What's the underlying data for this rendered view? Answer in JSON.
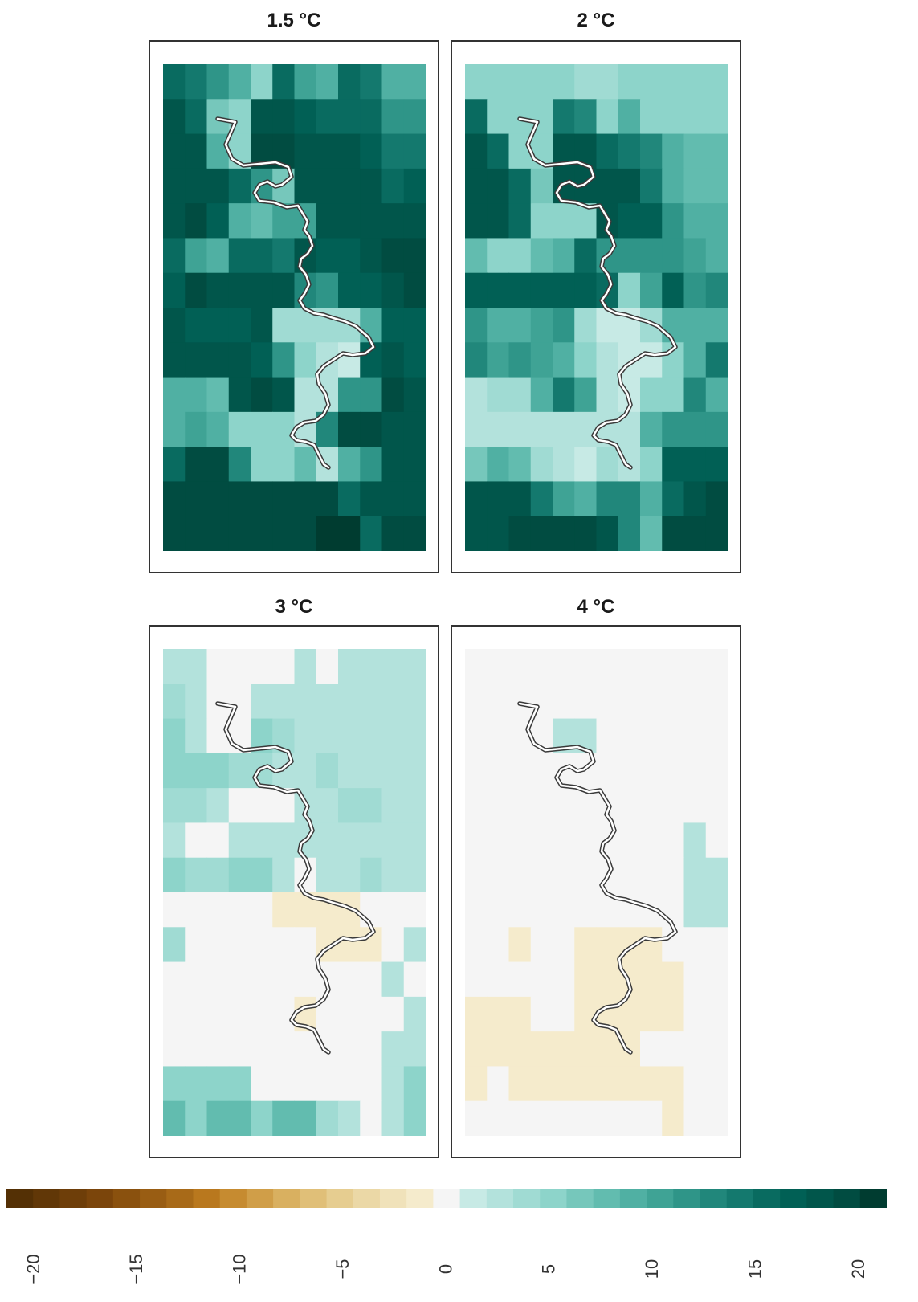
{
  "chart_data": {
    "type": "heatmap",
    "panels": [
      {
        "title": "1.5 °C",
        "rows": [
          [
            16,
            15,
            12,
            10,
            6,
            16,
            11,
            9,
            16,
            15,
            9,
            9
          ],
          [
            19,
            16,
            7,
            5,
            19,
            19,
            18,
            17,
            17,
            17,
            13,
            13
          ],
          [
            19,
            19,
            10,
            6,
            21,
            21,
            19,
            19,
            19,
            18,
            15,
            15
          ],
          [
            19,
            19,
            19,
            17,
            13,
            7,
            19,
            19,
            19,
            19,
            17,
            18
          ],
          [
            19,
            20,
            18,
            10,
            8,
            11,
            11,
            19,
            19,
            19,
            19,
            19
          ],
          [
            17,
            11,
            10,
            17,
            17,
            15,
            19,
            18,
            18,
            19,
            20,
            20
          ],
          [
            18,
            20,
            19,
            19,
            19,
            19,
            14,
            13,
            18,
            18,
            19,
            20
          ],
          [
            19,
            18,
            18,
            18,
            19,
            4,
            4,
            4,
            4,
            10,
            18,
            18
          ],
          [
            19,
            19,
            19,
            19,
            18,
            13,
            6,
            3,
            2,
            18,
            19,
            18
          ],
          [
            9,
            10,
            8,
            19,
            20,
            19,
            3,
            3,
            12,
            12,
            20,
            19
          ],
          [
            9,
            11,
            9,
            6,
            6,
            6,
            3,
            14,
            20,
            20,
            19,
            19
          ],
          [
            16,
            20,
            20,
            14,
            6,
            5,
            8,
            3,
            10,
            12,
            19,
            19
          ],
          [
            21,
            21,
            21,
            21,
            20,
            20,
            20,
            20,
            16,
            19,
            19,
            19
          ],
          [
            21,
            21,
            21,
            21,
            21,
            21,
            21,
            22,
            22,
            17,
            20,
            20
          ]
        ]
      },
      {
        "title": "2 °C",
        "rows": [
          [
            5,
            5,
            5,
            5,
            5,
            4,
            4,
            5,
            5,
            5,
            5,
            5
          ],
          [
            17,
            5,
            5,
            5,
            15,
            14,
            5,
            9,
            6,
            5,
            5,
            5
          ],
          [
            19,
            17,
            5,
            5,
            19,
            19,
            16,
            15,
            14,
            9,
            8,
            8
          ],
          [
            19,
            19,
            17,
            7,
            19,
            19,
            19,
            19,
            15,
            9,
            8,
            8
          ],
          [
            19,
            19,
            17,
            5,
            5,
            5,
            19,
            18,
            18,
            12,
            10,
            9
          ],
          [
            8,
            5,
            5,
            8,
            10,
            17,
            13,
            12,
            13,
            13,
            11,
            10
          ],
          [
            18,
            18,
            18,
            18,
            18,
            18,
            17,
            6,
            11,
            18,
            13,
            14
          ],
          [
            12,
            9,
            9,
            11,
            12,
            4,
            1,
            1,
            4,
            10,
            9,
            9
          ],
          [
            14,
            11,
            12,
            11,
            9,
            5,
            3,
            2,
            2,
            5,
            10,
            15
          ],
          [
            3,
            4,
            4,
            9,
            15,
            11,
            3,
            1,
            5,
            5,
            14,
            10
          ],
          [
            3,
            3,
            3,
            3,
            3,
            3,
            3,
            3,
            10,
            12,
            12,
            12
          ],
          [
            7,
            10,
            8,
            4,
            3,
            1,
            4,
            3,
            5,
            18,
            18,
            18
          ],
          [
            19,
            19,
            19,
            15,
            11,
            9,
            14,
            14,
            9,
            16,
            19,
            20
          ],
          [
            19,
            19,
            20,
            20,
            20,
            20,
            19,
            14,
            8,
            20,
            20,
            20
          ]
        ]
      },
      {
        "title": "3 °C",
        "rows": [
          [
            3,
            3,
            0,
            0,
            0,
            0,
            3,
            0,
            3,
            3,
            3,
            3
          ],
          [
            4,
            3,
            0,
            0,
            3,
            3,
            3,
            3,
            3,
            3,
            3,
            3
          ],
          [
            5,
            3,
            0,
            0,
            6,
            4,
            3,
            3,
            3,
            3,
            3,
            3
          ],
          [
            5,
            5,
            5,
            4,
            4,
            3,
            3,
            4,
            3,
            3,
            3,
            3
          ],
          [
            4,
            4,
            3,
            0,
            0,
            0,
            3,
            3,
            4,
            4,
            3,
            3
          ],
          [
            3,
            0,
            0,
            3,
            3,
            3,
            3,
            3,
            3,
            3,
            3,
            3
          ],
          [
            5,
            4,
            4,
            5,
            5,
            3,
            0,
            3,
            3,
            4,
            3,
            3
          ],
          [
            0,
            0,
            0,
            0,
            0,
            -1,
            -1,
            -1,
            -1,
            0,
            0,
            0
          ],
          [
            4,
            0,
            0,
            0,
            0,
            0,
            0,
            -1,
            -1,
            -1,
            0,
            3
          ],
          [
            0,
            0,
            0,
            0,
            0,
            0,
            0,
            0,
            0,
            0,
            3,
            0
          ],
          [
            0,
            0,
            0,
            0,
            0,
            0,
            -1,
            0,
            0,
            0,
            0,
            3
          ],
          [
            0,
            0,
            0,
            0,
            0,
            0,
            0,
            0,
            0,
            0,
            3,
            3
          ],
          [
            5,
            5,
            5,
            5,
            0,
            0,
            0,
            0,
            0,
            0,
            3,
            5
          ],
          [
            8,
            5,
            8,
            8,
            6,
            8,
            8,
            4,
            3,
            0,
            3,
            6
          ]
        ]
      },
      {
        "title": "4 °C",
        "rows": [
          [
            0,
            0,
            0,
            0,
            0,
            0,
            0,
            0,
            0,
            0,
            0,
            0
          ],
          [
            0,
            0,
            0,
            0,
            0,
            0,
            0,
            0,
            0,
            0,
            0,
            0
          ],
          [
            0,
            0,
            0,
            0,
            3,
            3,
            0,
            0,
            0,
            0,
            0,
            0
          ],
          [
            0,
            0,
            0,
            0,
            0,
            0,
            0,
            0,
            0,
            0,
            0,
            0
          ],
          [
            0,
            0,
            0,
            0,
            0,
            0,
            0,
            0,
            0,
            0,
            0,
            0
          ],
          [
            0,
            0,
            0,
            0,
            0,
            0,
            0,
            0,
            0,
            0,
            3,
            0
          ],
          [
            0,
            0,
            0,
            0,
            0,
            0,
            0,
            0,
            0,
            0,
            3,
            3
          ],
          [
            0,
            0,
            0,
            0,
            0,
            0,
            0,
            0,
            0,
            0,
            3,
            3
          ],
          [
            0,
            0,
            -1,
            0,
            0,
            -2,
            -2,
            -2,
            -2,
            0,
            0,
            0
          ],
          [
            0,
            0,
            0,
            0,
            0,
            -1,
            -1,
            -1,
            -2,
            -2,
            0,
            0
          ],
          [
            -1,
            -1,
            -1,
            0,
            0,
            -1,
            -2,
            -1,
            -1,
            -1,
            0,
            0
          ],
          [
            -1,
            -1,
            -1,
            -1,
            -1,
            -1,
            -1,
            -2,
            0,
            0,
            0,
            0
          ],
          [
            -1,
            0,
            -1,
            -1,
            -1,
            -1,
            -1,
            -2,
            -1,
            -1,
            0,
            0
          ],
          [
            0,
            0,
            0,
            0,
            0,
            0,
            0,
            0,
            0,
            -1,
            0,
            0
          ]
        ]
      }
    ],
    "colorbar": {
      "colors": [
        "#543005",
        "#613707",
        "#6e3e09",
        "#7b450b",
        "#8a510e",
        "#995d13",
        "#a86a18",
        "#b9781e",
        "#c68b30",
        "#d09e48",
        "#d9b060",
        "#e0bf78",
        "#e6cd90",
        "#ebd8a6",
        "#f0e2ba",
        "#f5ebcc",
        "#f5f5f5",
        "#c7eae5",
        "#b3e2dc",
        "#a0dbd3",
        "#8dd4ca",
        "#76c7bb",
        "#62bcaf",
        "#50b0a3",
        "#3fa395",
        "#2f9588",
        "#21877b",
        "#14796e",
        "#096b60",
        "#016055",
        "#01564b",
        "#014c41",
        "#003c30"
      ],
      "ticks": [
        "−20",
        "−15",
        "−10",
        "−5",
        "0",
        "5",
        "10",
        "15",
        "20"
      ]
    }
  }
}
